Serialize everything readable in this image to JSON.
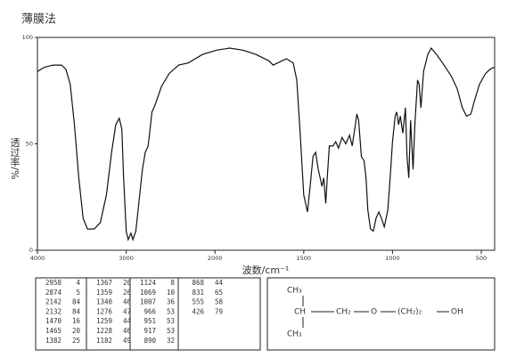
{
  "chart_data": {
    "type": "line",
    "title": "薄膜法",
    "x_label": "波数/cm⁻¹",
    "y_label": "透过率/%",
    "color": "#111111",
    "x": [
      4000,
      3922,
      3825,
      3728,
      3680,
      3631,
      3583,
      3534,
      3485,
      3437,
      3359,
      3291,
      3223,
      3165,
      3117,
      3078,
      3049,
      3029,
      3000,
      2978,
      2946,
      2925,
      2892,
      2860,
      2817,
      2785,
      2753,
      2731,
      2710,
      2677,
      2602,
      2516,
      2409,
      2301,
      2140,
      1990,
      1917,
      1843,
      1770,
      1696,
      1672,
      1647,
      1598,
      1559,
      1539,
      1520,
      1500,
      1479,
      1464,
      1448,
      1433,
      1418,
      1397,
      1387,
      1376,
      1366,
      1356,
      1335,
      1320,
      1304,
      1284,
      1263,
      1242,
      1227,
      1211,
      1201,
      1191,
      1175,
      1160,
      1149,
      1139,
      1124,
      1108,
      1093,
      1077,
      1062,
      1046,
      1026,
      1010,
      1000,
      985,
      976,
      966,
      956,
      942,
      927,
      918,
      908,
      898,
      884,
      874,
      859,
      850,
      840,
      825,
      801,
      782,
      752,
      718,
      670,
      636,
      607,
      583,
      558,
      539,
      510,
      476,
      451,
      427
    ],
    "values": [
      84,
      86,
      87,
      87,
      85,
      78,
      59,
      34,
      15,
      10,
      10,
      13,
      26,
      46,
      59,
      62,
      57,
      34,
      9,
      5,
      8,
      5,
      9,
      21,
      38,
      46,
      49,
      57,
      65,
      68,
      77,
      83,
      87,
      88,
      92,
      94,
      95,
      94,
      92,
      89,
      87,
      88,
      90,
      88,
      80,
      55,
      26,
      18,
      30,
      44,
      46,
      38,
      30,
      34,
      22,
      36,
      49,
      49,
      51,
      48,
      53,
      50,
      54,
      49,
      58,
      64,
      61,
      44,
      42,
      34,
      19,
      10,
      9,
      15,
      18,
      15,
      11,
      19,
      38,
      51,
      63,
      65,
      59,
      63,
      55,
      67,
      44,
      34,
      61,
      38,
      59,
      80,
      78,
      67,
      84,
      92,
      95,
      92,
      88,
      82,
      76,
      67,
      63,
      64,
      70,
      78,
      83,
      85,
      86
    ],
    "xlim": [
      4000,
      427
    ],
    "ylim": [
      0,
      100
    ],
    "xticks": [
      4000,
      3000,
      2000,
      1500,
      1000,
      500
    ],
    "yticks": [
      0,
      50,
      100
    ]
  },
  "peak_table": {
    "columns": [
      [
        [
          2958,
          4
        ],
        [
          2874,
          5
        ],
        [
          2142,
          84
        ],
        [
          2132,
          84
        ],
        [
          1470,
          16
        ],
        [
          1465,
          20
        ],
        [
          1382,
          25
        ]
      ],
      [
        [
          1367,
          20
        ],
        [
          1359,
          26
        ],
        [
          1340,
          46
        ],
        [
          1276,
          47
        ],
        [
          1259,
          44
        ],
        [
          1228,
          46
        ],
        [
          1182,
          49
        ]
      ],
      [
        [
          1124,
          8
        ],
        [
          1069,
          10
        ],
        [
          1007,
          36
        ],
        [
          966,
          53
        ],
        [
          951,
          53
        ],
        [
          917,
          53
        ],
        [
          890,
          32
        ]
      ],
      [
        [
          868,
          44
        ],
        [
          831,
          65
        ],
        [
          555,
          58
        ],
        [
          426,
          79
        ]
      ]
    ]
  },
  "structure": {
    "top_methyl": "CH₃",
    "methine": "CH",
    "methylene": "CH₂",
    "oxygen": "O",
    "ethylene": "(CH₂)₂",
    "hydroxyl": "OH",
    "bottom_methyl": "CH₃"
  }
}
